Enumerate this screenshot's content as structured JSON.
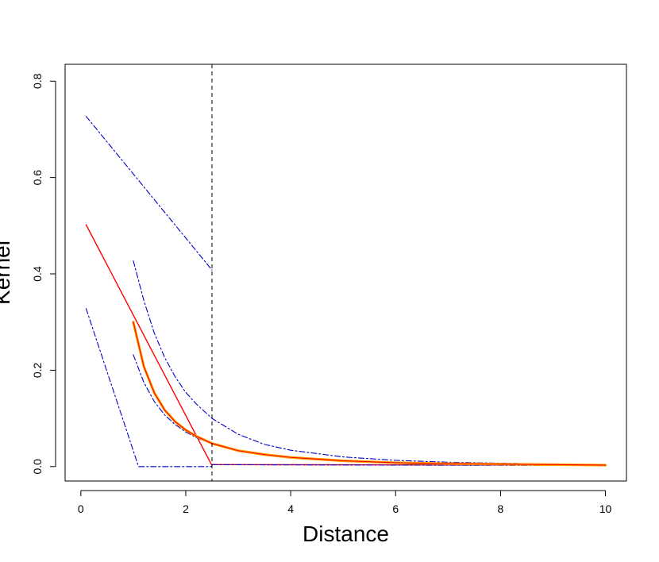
{
  "chart_data": {
    "type": "line",
    "title": "",
    "xlabel": "Distance",
    "ylabel": "Kernel",
    "xlim": [
      -0.3,
      10.4
    ],
    "ylim": [
      -0.03,
      0.835
    ],
    "xticks": [
      0,
      2,
      4,
      6,
      8,
      10
    ],
    "yticks": [
      0.0,
      0.2,
      0.4,
      0.6,
      0.8
    ],
    "xtick_labels": [
      "0",
      "2",
      "4",
      "6",
      "8",
      "10"
    ],
    "ytick_labels": [
      "0.0",
      "0.2",
      "0.4",
      "0.6",
      "0.8"
    ],
    "grid": false,
    "legend": "none",
    "vline": {
      "x": 2.5,
      "style": "dashed",
      "color": "#000000"
    },
    "series": [
      {
        "color": "#ff0000",
        "style": "solid",
        "width": 1.4,
        "segments": [
          [
            [
              0.1,
              0.502
            ],
            [
              2.5,
              0.002
            ]
          ],
          [
            [
              2.5,
              0.004
            ],
            [
              10,
              0.003
            ]
          ]
        ]
      },
      {
        "color": "#0000cc",
        "style": "dashdot",
        "width": 1.1,
        "segments": [
          [
            [
              0.1,
              0.727
            ],
            [
              2.5,
              0.408
            ]
          ],
          [
            [
              0.1,
              0.328
            ],
            [
              1.1,
              0.0
            ],
            [
              2.5,
              0.0
            ]
          ],
          [
            [
              2.5,
              0.004
            ],
            [
              10,
              0.002
            ]
          ],
          [
            [
              1.0,
              0.427
            ],
            [
              1.2,
              0.345
            ],
            [
              1.4,
              0.277
            ],
            [
              1.6,
              0.226
            ],
            [
              1.8,
              0.186
            ],
            [
              2.0,
              0.154
            ],
            [
              2.2,
              0.13
            ],
            [
              2.5,
              0.1
            ],
            [
              3.0,
              0.067
            ],
            [
              3.5,
              0.046
            ],
            [
              4.0,
              0.034
            ],
            [
              5.0,
              0.02
            ],
            [
              6.0,
              0.013
            ],
            [
              7.0,
              0.009
            ],
            [
              8.0,
              0.007
            ],
            [
              9.0,
              0.005
            ],
            [
              10.0,
              0.004
            ]
          ],
          [
            [
              1.0,
              0.232
            ],
            [
              1.2,
              0.175
            ],
            [
              1.4,
              0.135
            ],
            [
              1.6,
              0.107
            ],
            [
              1.8,
              0.087
            ],
            [
              2.0,
              0.072
            ],
            [
              2.2,
              0.06
            ],
            [
              2.5,
              0.047
            ],
            [
              3.0,
              0.033
            ],
            [
              3.5,
              0.025
            ],
            [
              4.0,
              0.02
            ],
            [
              5.0,
              0.012
            ],
            [
              6.0,
              0.008
            ],
            [
              7.0,
              0.006
            ],
            [
              8.0,
              0.004
            ],
            [
              9.0,
              0.003
            ],
            [
              10.0,
              0.002
            ]
          ]
        ]
      },
      {
        "color": "#ffa500",
        "style": "solid",
        "width": 3.2,
        "segments": [
          [
            [
              1.0,
              0.3
            ],
            [
              1.2,
              0.208
            ],
            [
              1.4,
              0.153
            ],
            [
              1.6,
              0.117
            ],
            [
              1.8,
              0.093
            ],
            [
              2.0,
              0.076
            ],
            [
              2.2,
              0.063
            ],
            [
              2.5,
              0.048
            ],
            [
              3.0,
              0.033
            ],
            [
              3.5,
              0.025
            ],
            [
              4.0,
              0.019
            ],
            [
              5.0,
              0.012
            ],
            [
              6.0,
              0.008
            ],
            [
              7.0,
              0.006
            ],
            [
              8.0,
              0.005
            ],
            [
              9.0,
              0.004
            ],
            [
              10.0,
              0.003
            ]
          ]
        ]
      },
      {
        "color": "#ff0000",
        "style": "solid",
        "width": 1.1,
        "segments": [
          [
            [
              1.0,
              0.3
            ],
            [
              1.2,
              0.208
            ],
            [
              1.4,
              0.153
            ],
            [
              1.6,
              0.117
            ],
            [
              1.8,
              0.093
            ],
            [
              2.0,
              0.076
            ],
            [
              2.2,
              0.063
            ],
            [
              2.5,
              0.048
            ],
            [
              3.0,
              0.033
            ],
            [
              3.5,
              0.025
            ],
            [
              4.0,
              0.019
            ],
            [
              5.0,
              0.012
            ],
            [
              6.0,
              0.008
            ],
            [
              7.0,
              0.006
            ],
            [
              8.0,
              0.005
            ],
            [
              9.0,
              0.004
            ],
            [
              10.0,
              0.003
            ]
          ]
        ]
      }
    ]
  }
}
